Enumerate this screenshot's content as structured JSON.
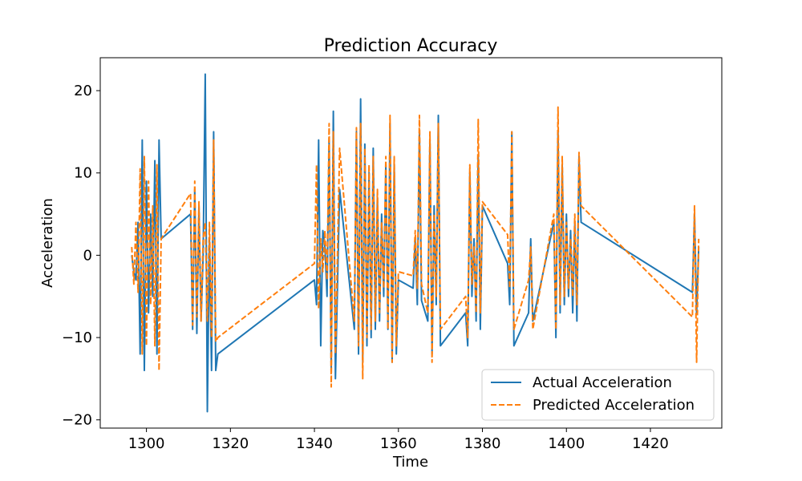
{
  "chart_data": {
    "type": "line",
    "title": "Prediction Accuracy",
    "xlabel": "Time",
    "ylabel": "Acceleration",
    "xlim": [
      1289,
      1437
    ],
    "ylim": [
      -21,
      24
    ],
    "xticks": [
      1300,
      1320,
      1340,
      1360,
      1380,
      1400,
      1420
    ],
    "yticks": [
      -20,
      -10,
      0,
      10,
      20
    ],
    "grid": false,
    "legend": {
      "position": "lower-right",
      "entries": [
        "Actual Acceleration",
        "Predicted Acceleration"
      ]
    },
    "series": [
      {
        "name": "Actual Acceleration",
        "color": "#1f77b4",
        "style": "solid",
        "x": [
          1296.5,
          1297.0,
          1297.5,
          1298.0,
          1298.5,
          1299.0,
          1299.5,
          1300.0,
          1300.5,
          1301.0,
          1301.5,
          1302.0,
          1302.5,
          1303.0,
          1303.5,
          1310.5,
          1311.0,
          1311.5,
          1312.0,
          1312.5,
          1313.0,
          1313.5,
          1314.0,
          1314.5,
          1315.0,
          1315.5,
          1316.0,
          1316.5,
          1317.0,
          1340.0,
          1340.5,
          1341.0,
          1341.5,
          1342.0,
          1342.5,
          1343.0,
          1343.5,
          1344.0,
          1344.5,
          1345.0,
          1346.0,
          1349.5,
          1350.0,
          1350.5,
          1351.0,
          1351.5,
          1352.0,
          1352.5,
          1353.0,
          1353.5,
          1354.0,
          1354.5,
          1355.0,
          1355.5,
          1356.0,
          1356.5,
          1357.0,
          1357.5,
          1358.0,
          1358.5,
          1359.0,
          1359.5,
          1360.0,
          1363.5,
          1364.0,
          1364.5,
          1365.0,
          1365.5,
          1367.0,
          1367.5,
          1368.0,
          1368.5,
          1369.0,
          1369.5,
          1370.0,
          1376.0,
          1376.5,
          1377.0,
          1377.5,
          1378.0,
          1378.5,
          1379.0,
          1379.5,
          1380.0,
          1386.0,
          1386.5,
          1387.0,
          1387.5,
          1391.0,
          1391.5,
          1392.0,
          1397.0,
          1397.5,
          1398.0,
          1398.5,
          1399.0,
          1399.5,
          1400.0,
          1400.5,
          1401.0,
          1401.5,
          1402.0,
          1402.5,
          1403.0,
          1403.5,
          1430.0,
          1430.5,
          1431.0,
          1431.5
        ],
        "values": [
          0.0,
          -2.0,
          -3.0,
          4.0,
          -12.0,
          14.0,
          -14.0,
          9.0,
          -7.0,
          5.0,
          -5.0,
          11.5,
          -12.0,
          14.0,
          2.0,
          5.0,
          -9.0,
          8.0,
          -9.5,
          6.0,
          -8.0,
          0.0,
          22.0,
          -19.0,
          2.0,
          -14.0,
          15.0,
          -14.0,
          -12.0,
          -3.0,
          -6.0,
          14.0,
          -11.0,
          3.0,
          1.0,
          -5.0,
          14.0,
          -14.0,
          17.5,
          -15.0,
          8.0,
          -9.0,
          15.0,
          -12.0,
          19.0,
          -13.0,
          13.5,
          -11.0,
          10.0,
          -10.0,
          13.0,
          -9.0,
          7.0,
          -8.0,
          5.0,
          -5.0,
          11.0,
          -9.0,
          16.0,
          -13.0,
          11.0,
          -12.0,
          -3.0,
          -4.0,
          2.0,
          -6.0,
          15.0,
          -5.5,
          -8.0,
          14.0,
          -12.0,
          6.0,
          -6.0,
          17.0,
          -11.0,
          -7.0,
          -11.0,
          10.0,
          -5.0,
          2.0,
          -8.0,
          12.0,
          -9.0,
          6.0,
          -1.0,
          -6.0,
          15.0,
          -11.0,
          -7.0,
          2.0,
          -8.0,
          4.0,
          -10.0,
          15.0,
          -7.0,
          11.0,
          -6.0,
          5.0,
          -5.0,
          3.0,
          -7.0,
          4.0,
          -8.0,
          12.0,
          4.0,
          -4.5,
          5.0,
          -7.0,
          1.0
        ]
      },
      {
        "name": "Predicted Acceleration",
        "color": "#ff7f0e",
        "style": "dashed",
        "x": [
          1296.5,
          1297.0,
          1297.5,
          1298.0,
          1298.5,
          1299.0,
          1299.5,
          1300.0,
          1300.5,
          1301.0,
          1301.5,
          1302.0,
          1302.5,
          1303.0,
          1303.5,
          1310.5,
          1311.0,
          1311.5,
          1312.0,
          1312.5,
          1313.0,
          1313.5,
          1314.0,
          1314.5,
          1315.0,
          1315.5,
          1316.0,
          1316.5,
          1317.0,
          1340.0,
          1340.5,
          1341.0,
          1341.5,
          1342.0,
          1342.5,
          1343.0,
          1343.5,
          1344.0,
          1344.5,
          1345.0,
          1346.0,
          1349.5,
          1350.0,
          1350.5,
          1351.0,
          1351.5,
          1352.0,
          1352.5,
          1353.0,
          1353.5,
          1354.0,
          1354.5,
          1355.0,
          1355.5,
          1356.0,
          1356.5,
          1357.0,
          1357.5,
          1358.0,
          1358.5,
          1359.0,
          1359.5,
          1360.0,
          1363.5,
          1364.0,
          1364.5,
          1365.0,
          1365.5,
          1367.0,
          1367.5,
          1368.0,
          1368.5,
          1369.0,
          1369.5,
          1370.0,
          1376.0,
          1376.5,
          1377.0,
          1377.5,
          1378.0,
          1378.5,
          1379.0,
          1379.5,
          1380.0,
          1386.0,
          1386.5,
          1387.0,
          1387.5,
          1391.0,
          1391.5,
          1392.0,
          1397.0,
          1397.5,
          1398.0,
          1398.5,
          1399.0,
          1399.5,
          1400.0,
          1400.5,
          1401.0,
          1401.5,
          1402.0,
          1402.5,
          1403.0,
          1403.5,
          1430.0,
          1430.5,
          1431.0,
          1431.5
        ],
        "values": [
          1.0,
          -3.5,
          4.0,
          -4.5,
          10.5,
          -12.0,
          12.0,
          -11.0,
          9.0,
          -6.0,
          6.0,
          -11.0,
          11.0,
          -14.0,
          2.0,
          7.5,
          -8.5,
          9.0,
          -7.5,
          6.5,
          -8.0,
          2.0,
          4.0,
          -8.0,
          4.0,
          -10.0,
          14.0,
          -10.5,
          -10.0,
          -1.0,
          11.0,
          -6.5,
          2.0,
          -2.0,
          3.0,
          -3.0,
          16.0,
          -16.0,
          15.0,
          -12.0,
          13.0,
          -8.0,
          15.5,
          -11.0,
          16.0,
          -15.0,
          13.0,
          -10.0,
          11.0,
          -9.0,
          12.0,
          -8.0,
          8.0,
          -7.0,
          4.0,
          -4.0,
          12.0,
          -9.0,
          17.0,
          -13.0,
          12.0,
          -11.0,
          -2.0,
          -2.5,
          3.0,
          -4.0,
          17.0,
          -3.5,
          -7.0,
          15.0,
          -13.0,
          5.0,
          -5.0,
          16.0,
          -9.0,
          -5.0,
          -10.0,
          11.0,
          -3.5,
          1.0,
          -7.0,
          16.5,
          -7.0,
          6.5,
          2.5,
          -4.0,
          15.0,
          -9.0,
          -3.0,
          1.0,
          -9.0,
          5.0,
          -9.0,
          18.0,
          -6.0,
          12.0,
          -5.0,
          4.0,
          -4.0,
          2.0,
          -5.0,
          5.0,
          -6.0,
          12.5,
          6.0,
          -7.5,
          6.0,
          -13.0,
          2.0
        ]
      }
    ]
  }
}
